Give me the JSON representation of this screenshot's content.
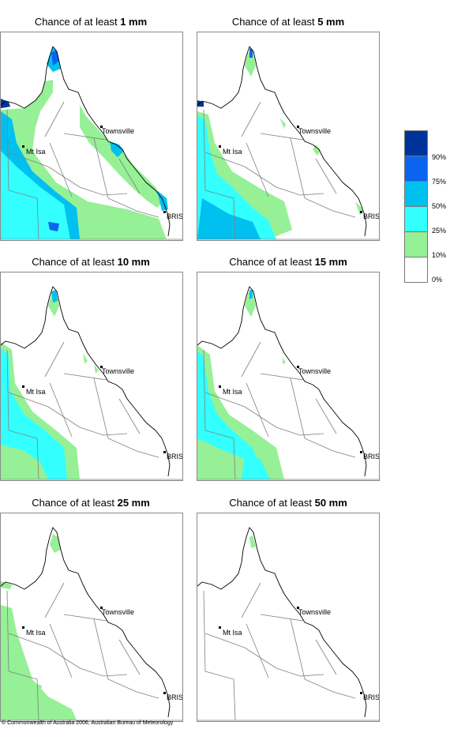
{
  "panels": [
    {
      "title_prefix": "Chance of at least ",
      "amount": "1 mm",
      "level": 1
    },
    {
      "title_prefix": "Chance of at least ",
      "amount": "5 mm",
      "level": 2
    },
    {
      "title_prefix": "Chance of at least ",
      "amount": "10 mm",
      "level": 3
    },
    {
      "title_prefix": "Chance of at least ",
      "amount": "15 mm",
      "level": 4
    },
    {
      "title_prefix": "Chance of at least ",
      "amount": "25 mm",
      "level": 5
    },
    {
      "title_prefix": "Chance of at least ",
      "amount": "50 mm",
      "level": 6
    }
  ],
  "places": {
    "townsville": "Townsville",
    "mt_isa": "Mt Isa",
    "bris": "BRIS"
  },
  "legend": {
    "labels": [
      "90%",
      "75%",
      "50%",
      "25%",
      "10%",
      "0%"
    ],
    "colors": [
      "#003399",
      "#0a64f0",
      "#00c0f0",
      "#33ffff",
      "#96f096",
      "#ffffff"
    ]
  },
  "copyright": "© Commonwealth of Australia 2006, Australian Bureau of Meteorology"
}
